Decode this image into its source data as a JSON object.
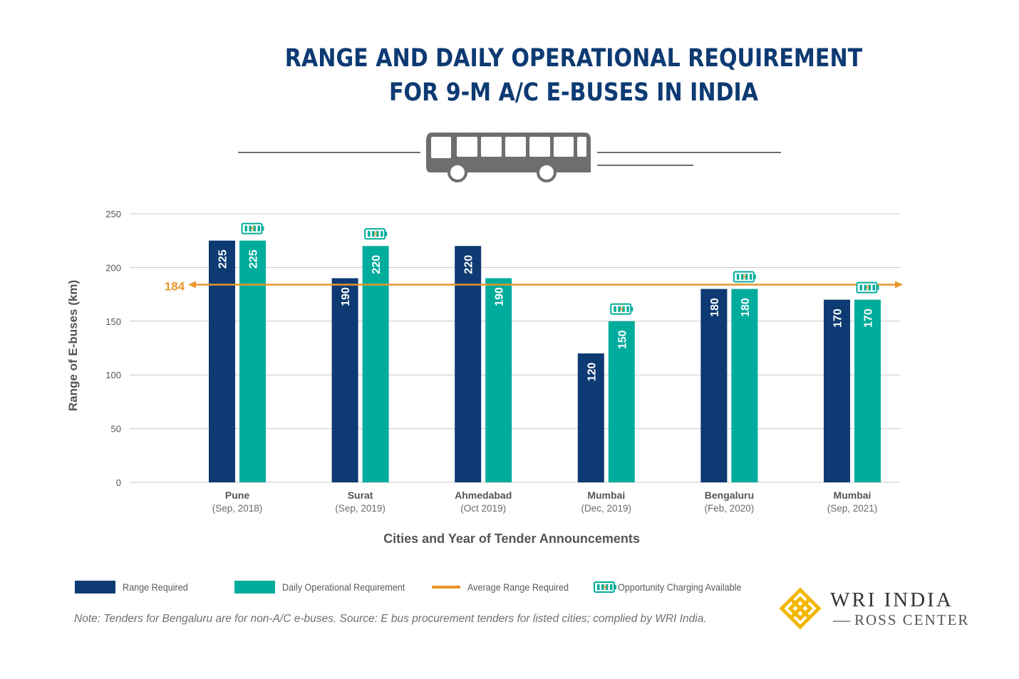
{
  "title_line1": "RANGE AND DAILY OPERATIONAL REQUIREMENT",
  "title_line2": "FOR 9-M A/C E-BUSES IN INDIA",
  "colors": {
    "range_required": "#0d3a72",
    "daily_requirement": "#00ac9c",
    "average_line": "#e8962b",
    "grid": "#c8c8c8",
    "axis_text": "#555555",
    "bus": "#6e6e6e"
  },
  "legend": {
    "range_required": "Range Required",
    "daily_requirement": "Daily Operational Requirement",
    "average": "Average Range Required",
    "opportunity_charging": "Opportunity Charging Available"
  },
  "note": "Note: Tenders for Bengaluru are for non-A/C e-buses.  Source: E bus procurement tenders for listed cities; complied by WRI India.",
  "logo": {
    "name": "WRI INDIA",
    "subtitle": "ROSS CENTER"
  },
  "chart_data": {
    "type": "bar",
    "title": "RANGE AND DAILY OPERATIONAL REQUIREMENT FOR 9-M A/C E-BUSES IN INDIA",
    "xlabel": "Cities and Year of Tender Announcements",
    "ylabel": "Range of E-buses (km)",
    "ylim": [
      0,
      250
    ],
    "yticks": [
      0,
      50,
      100,
      150,
      200,
      250
    ],
    "grid": true,
    "categories": [
      {
        "city": "Pune",
        "date": "(Sep, 2018)"
      },
      {
        "city": "Surat",
        "date": "(Sep, 2019)"
      },
      {
        "city": "Ahmedabad",
        "date": "(Oct 2019)"
      },
      {
        "city": "Mumbai",
        "date": "(Dec, 2019)"
      },
      {
        "city": "Bengaluru",
        "date": "(Feb, 2020)"
      },
      {
        "city": "Mumbai",
        "date": "(Sep, 2021)"
      }
    ],
    "series": [
      {
        "name": "Range Required",
        "values": [
          225,
          190,
          220,
          120,
          180,
          170
        ]
      },
      {
        "name": "Daily Operational Requirement",
        "values": [
          225,
          220,
          190,
          150,
          180,
          170
        ]
      }
    ],
    "data_labels": [
      [
        "225",
        "190",
        "220",
        "120",
        "180",
        "170"
      ],
      [
        "225",
        "220",
        "190",
        "150",
        "180",
        "170"
      ]
    ],
    "opportunity_charging": [
      true,
      true,
      false,
      true,
      true,
      true
    ],
    "average": {
      "value": 184,
      "label": "184"
    }
  }
}
